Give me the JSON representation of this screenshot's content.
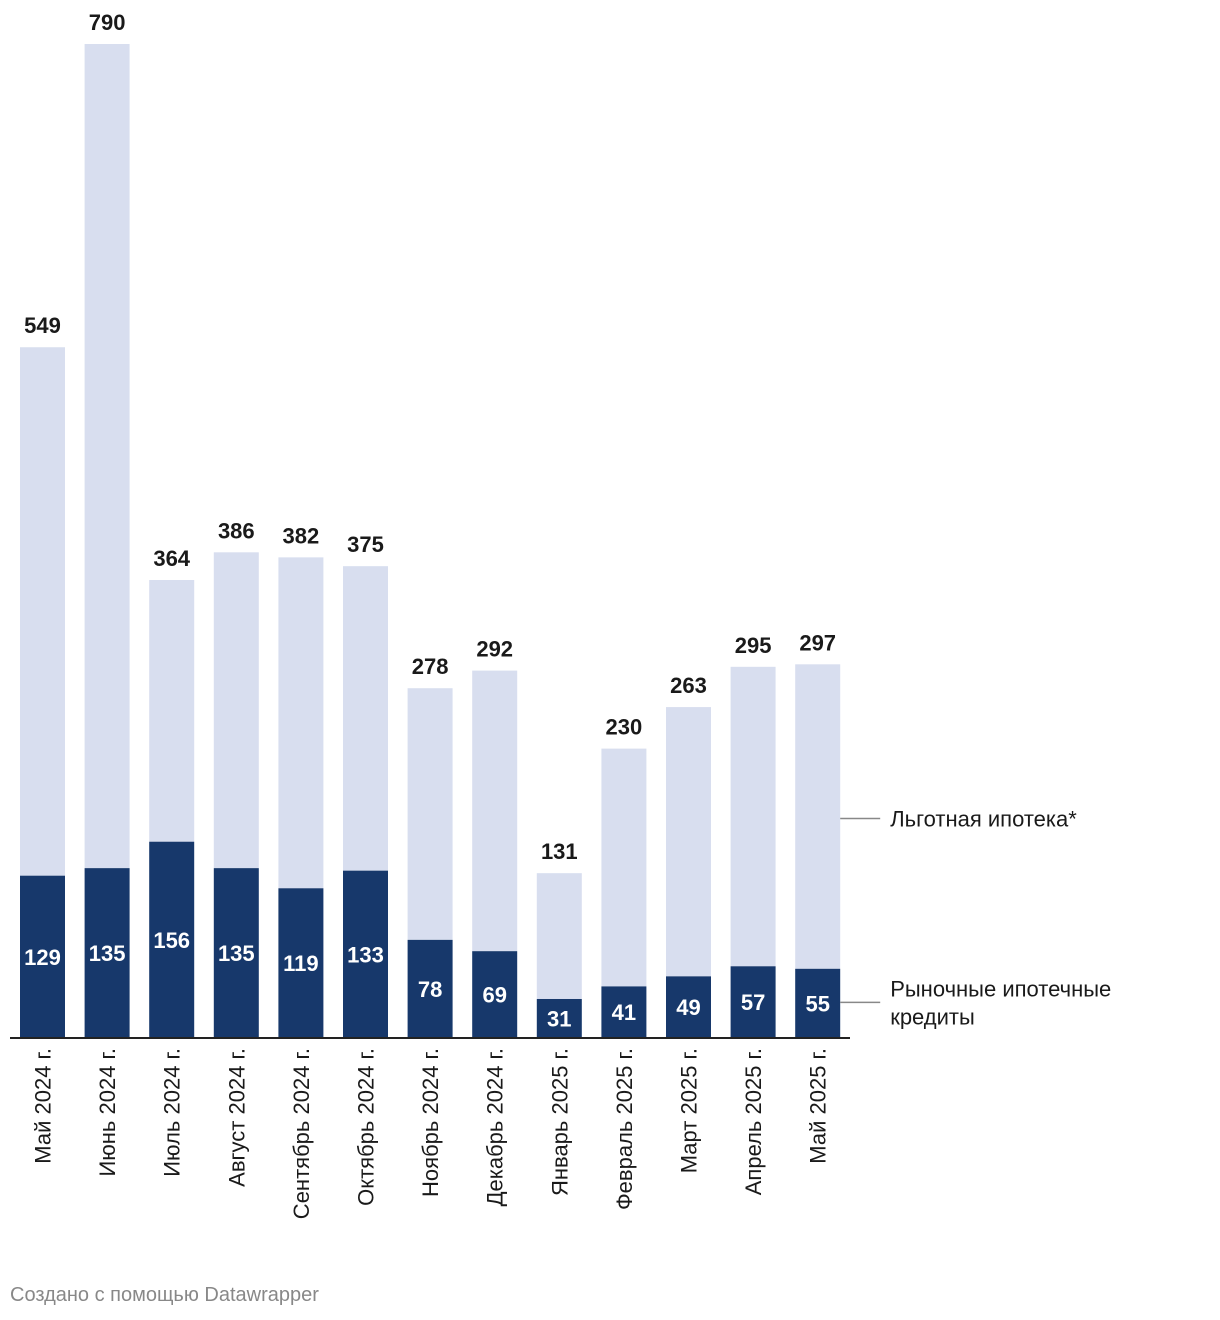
{
  "chart_data": {
    "type": "bar",
    "stacked": true,
    "categories": [
      "Май 2024 г.",
      "Июнь 2024 г.",
      "Июль 2024 г.",
      "Август 2024 г.",
      "Сентябрь 2024 г.",
      "Октябрь 2024 г.",
      "Ноябрь 2024 г.",
      "Декабрь 2024 г.",
      "Январь 2025 г.",
      "Февраль 2025 г.",
      "Март 2025 г.",
      "Апрель 2025 г.",
      "Май 2025 г."
    ],
    "totals": [
      549,
      790,
      364,
      386,
      382,
      375,
      278,
      292,
      131,
      230,
      263,
      295,
      297
    ],
    "series": [
      {
        "name": "Рыночные ипотечные кредиты",
        "legend_lines": [
          "Рыночные ипотечные",
          "кредиты"
        ],
        "color": "#17386b",
        "values": [
          129,
          135,
          156,
          135,
          119,
          133,
          78,
          69,
          31,
          41,
          49,
          57,
          55
        ]
      },
      {
        "name": "Льготная ипотека*",
        "legend_lines": [
          "Льготная ипотека*"
        ],
        "color": "#d8deef",
        "values": [
          420,
          655,
          208,
          251,
          263,
          242,
          200,
          223,
          100,
          189,
          214,
          238,
          242
        ]
      }
    ],
    "title": "",
    "xlabel": "",
    "ylabel": "",
    "ylim": [
      0,
      790
    ],
    "grid": false,
    "legend": "right, labels aligned to the last bar"
  },
  "footer": {
    "credit": "Создано с помощью Datawrapper"
  }
}
